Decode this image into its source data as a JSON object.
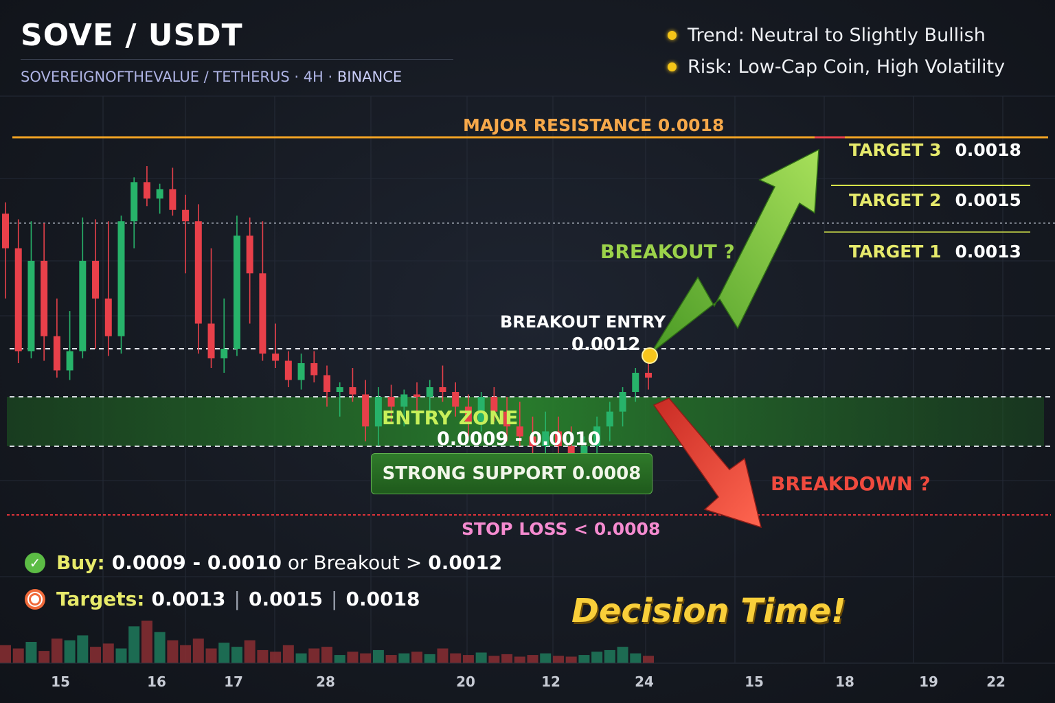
{
  "header": {
    "title": "SOVE / USDT",
    "subtitle_pair": "SOVEREIGNOFTHEVALUE  /  TETHERUS · 4H · ",
    "subtitle_exchange": "BINANCE"
  },
  "notes": [
    "Trend: Neutral to Slightly Bullish",
    "Risk: Low-Cap Coin, High Volatility"
  ],
  "levels": {
    "resistance_label": "MAJOR RESISTANCE 0.0018",
    "targets": [
      {
        "label": "TARGET 3",
        "value": "0.0018"
      },
      {
        "label": "TARGET 2",
        "value": "0.0015"
      },
      {
        "label": "TARGET 1",
        "value": "0.0013"
      }
    ],
    "breakout_question": "BREAKOUT ?",
    "breakout_entry_label": "BREAKOUT ENTRY",
    "breakout_entry_value": "0.0012",
    "entry_zone_label": "ENTRY ZONE",
    "entry_zone_value": "0.0009 - 0.0010",
    "support_label": "STRONG SUPPORT  0.0008",
    "breakdown_question": "BREAKDOWN ?",
    "stop_loss_label": "STOP LOSS < 0.0008"
  },
  "summary": {
    "buy_key": "Buy:",
    "buy_range": "0.0009 - 0.0010",
    "buy_or": " or Breakout > ",
    "buy_breakout": "0.0012",
    "targets_key": "Targets:",
    "targets": [
      "0.0013",
      "0.0015",
      "0.0018"
    ],
    "tagline": "Decision Time!"
  },
  "colors": {
    "up": "#27b36a",
    "down": "#e8404a",
    "resistance": "#f2a324",
    "entry_zone": "#1f6b23",
    "stop_loss": "#e0333a",
    "bull_arrow": "#78c83a",
    "bear_arrow": "#ea4335"
  },
  "chart_data": {
    "type": "candlestick",
    "title": "SOVE / USDT",
    "xlabel": "",
    "ylabel": "",
    "x_ticks": [
      "15",
      "16",
      "17",
      "28",
      "20",
      "12",
      "24",
      "15",
      "18",
      "19",
      "22"
    ],
    "ylim": [
      0.0007,
      0.00185
    ],
    "horizontal_levels": [
      {
        "name": "Major Resistance",
        "value": 0.0018
      },
      {
        "name": "Target 3",
        "value": 0.0018
      },
      {
        "name": "Target 2",
        "value": 0.0015
      },
      {
        "name": "Target 1",
        "value": 0.0013
      },
      {
        "name": "Breakout Entry",
        "value": 0.0012
      },
      {
        "name": "Entry Zone",
        "range": [
          0.0009,
          0.001
        ]
      },
      {
        "name": "Strong Support",
        "value": 0.0008
      },
      {
        "name": "Stop Loss",
        "value": 0.0008
      }
    ],
    "candles": [
      {
        "o": 0.00135,
        "h": 0.00141,
        "l": 0.00124,
        "c": 0.00128
      },
      {
        "o": 0.00128,
        "h": 0.00132,
        "l": 0.00114,
        "c": 0.00119
      },
      {
        "o": 0.00119,
        "h": 0.00131,
        "l": 0.00116,
        "c": 0.00127
      },
      {
        "o": 0.00127,
        "h": 0.0013,
        "l": 0.00115,
        "c": 0.00121
      },
      {
        "o": 0.00121,
        "h": 0.00124,
        "l": 0.00108,
        "c": 0.00111
      },
      {
        "o": 0.00111,
        "h": 0.00123,
        "l": 0.00107,
        "c": 0.00119
      },
      {
        "o": 0.00119,
        "h": 0.00133,
        "l": 0.00116,
        "c": 0.00127
      },
      {
        "o": 0.00127,
        "h": 0.00132,
        "l": 0.0012,
        "c": 0.00124
      },
      {
        "o": 0.00124,
        "h": 0.00131,
        "l": 0.00117,
        "c": 0.00121
      },
      {
        "o": 0.00121,
        "h": 0.00134,
        "l": 0.00118,
        "c": 0.00131
      },
      {
        "o": 0.00131,
        "h": 0.00155,
        "l": 0.00128,
        "c": 0.00152
      },
      {
        "o": 0.00152,
        "h": 0.00162,
        "l": 0.00139,
        "c": 0.00143
      },
      {
        "o": 0.00143,
        "h": 0.00151,
        "l": 0.00135,
        "c": 0.00148
      },
      {
        "o": 0.00148,
        "h": 0.00161,
        "l": 0.00134,
        "c": 0.00137
      },
      {
        "o": 0.00137,
        "h": 0.00145,
        "l": 0.00126,
        "c": 0.00131
      },
      {
        "o": 0.00131,
        "h": 0.0014,
        "l": 0.00118,
        "c": 0.00122
      },
      {
        "o": 0.00122,
        "h": 0.00128,
        "l": 0.00112,
        "c": 0.00116
      },
      {
        "o": 0.00116,
        "h": 0.00124,
        "l": 0.0011,
        "c": 0.0012
      },
      {
        "o": 0.0012,
        "h": 0.00134,
        "l": 0.00117,
        "c": 0.00129
      },
      {
        "o": 0.00129,
        "h": 0.00133,
        "l": 0.00122,
        "c": 0.00126
      },
      {
        "o": 0.00126,
        "h": 0.00131,
        "l": 0.00115,
        "c": 0.00118
      },
      {
        "o": 0.00118,
        "h": 0.00122,
        "l": 0.00112,
        "c": 0.00115
      },
      {
        "o": 0.00115,
        "h": 0.00119,
        "l": 0.00104,
        "c": 0.00107
      },
      {
        "o": 0.00107,
        "h": 0.00118,
        "l": 0.00103,
        "c": 0.00114
      },
      {
        "o": 0.00114,
        "h": 0.00119,
        "l": 0.00106,
        "c": 0.00109
      },
      {
        "o": 0.00109,
        "h": 0.00113,
        "l": 0.00098,
        "c": 0.00102
      },
      {
        "o": 0.00102,
        "h": 0.00106,
        "l": 0.00096,
        "c": 0.00104
      },
      {
        "o": 0.00104,
        "h": 0.00112,
        "l": 0.00099,
        "c": 0.00101
      },
      {
        "o": 0.00101,
        "h": 0.00107,
        "l": 0.00091,
        "c": 0.00094
      },
      {
        "o": 0.00094,
        "h": 0.00104,
        "l": 0.0009,
        "c": 0.001
      },
      {
        "o": 0.001,
        "h": 0.00105,
        "l": 0.00095,
        "c": 0.00098
      },
      {
        "o": 0.00098,
        "h": 0.00103,
        "l": 0.00094,
        "c": 0.00101
      },
      {
        "o": 0.00101,
        "h": 0.00106,
        "l": 0.00097,
        "c": 0.001
      },
      {
        "o": 0.001,
        "h": 0.00107,
        "l": 0.00096,
        "c": 0.00104
      },
      {
        "o": 0.00104,
        "h": 0.00113,
        "l": 0.00099,
        "c": 0.00102
      },
      {
        "o": 0.00102,
        "h": 0.00106,
        "l": 0.00096,
        "c": 0.00098
      },
      {
        "o": 0.00098,
        "h": 0.00101,
        "l": 0.00092,
        "c": 0.00095
      },
      {
        "o": 0.00095,
        "h": 0.00102,
        "l": 0.00093,
        "c": 0.001
      },
      {
        "o": 0.001,
        "h": 0.00104,
        "l": 0.00095,
        "c": 0.00097
      },
      {
        "o": 0.00097,
        "h": 0.001,
        "l": 0.00091,
        "c": 0.00094
      },
      {
        "o": 0.00094,
        "h": 0.00099,
        "l": 0.0009,
        "c": 0.00092
      },
      {
        "o": 0.00092,
        "h": 0.00096,
        "l": 0.00087,
        "c": 0.0009
      },
      {
        "o": 0.0009,
        "h": 0.00097,
        "l": 0.00086,
        "c": 0.00093
      },
      {
        "o": 0.00093,
        "h": 0.00096,
        "l": 0.00088,
        "c": 0.0009
      },
      {
        "o": 0.0009,
        "h": 0.00094,
        "l": 0.00085,
        "c": 0.00087
      },
      {
        "o": 0.00087,
        "h": 0.00092,
        "l": 0.00084,
        "c": 0.0009
      },
      {
        "o": 0.0009,
        "h": 0.00096,
        "l": 0.00087,
        "c": 0.00094
      },
      {
        "o": 0.00094,
        "h": 0.00099,
        "l": 0.00091,
        "c": 0.00097
      },
      {
        "o": 0.00097,
        "h": 0.00104,
        "l": 0.00094,
        "c": 0.00102
      },
      {
        "o": 0.00102,
        "h": 0.00112,
        "l": 0.00099,
        "c": 0.0011
      },
      {
        "o": 0.0011,
        "h": 0.00116,
        "l": 0.00103,
        "c": 0.00108
      }
    ],
    "volume": [
      22,
      18,
      26,
      15,
      30,
      28,
      34,
      20,
      24,
      18,
      45,
      52,
      38,
      28,
      22,
      30,
      18,
      25,
      20,
      28,
      16,
      14,
      22,
      12,
      18,
      20,
      10,
      14,
      12,
      16,
      10,
      12,
      14,
      11,
      18,
      12,
      10,
      13,
      9,
      11,
      8,
      10,
      12,
      9,
      8,
      10,
      14,
      16,
      20,
      12,
      9
    ]
  }
}
